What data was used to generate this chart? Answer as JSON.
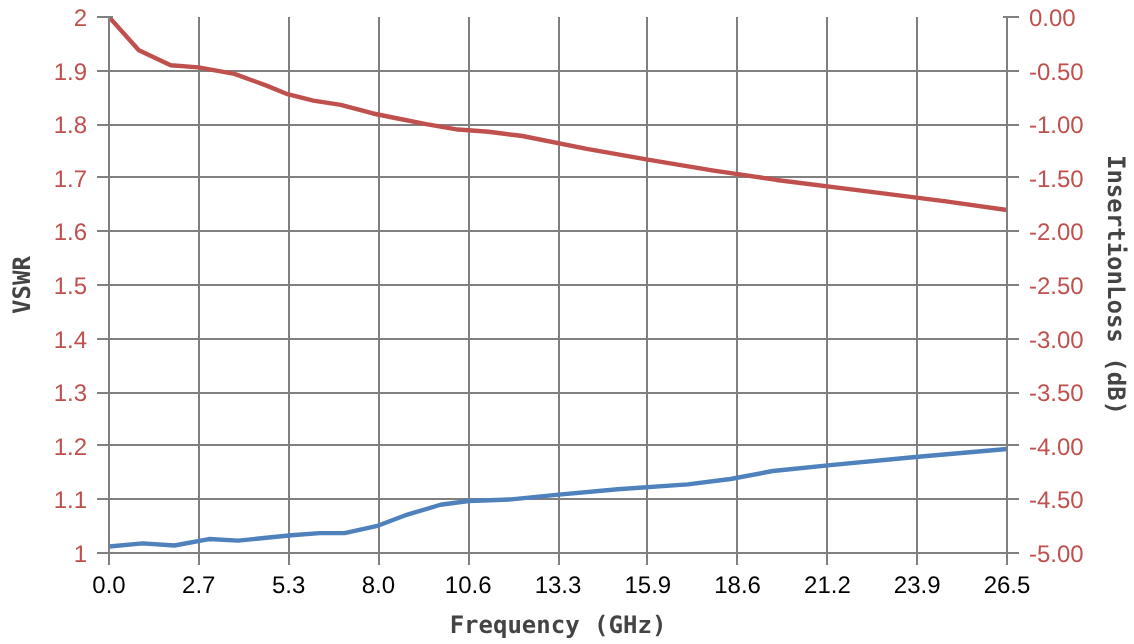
{
  "chart_data": {
    "type": "line",
    "xlabel": "Frequency (GHz)",
    "ylabel": "VSWR",
    "y2label": "InsertionLoss (dB)",
    "xlim": [
      0,
      26.5
    ],
    "xticks": [
      {
        "value": 0,
        "label": "0.0"
      },
      {
        "value": 2.65,
        "label": "2.7"
      },
      {
        "value": 5.3,
        "label": "5.3"
      },
      {
        "value": 7.95,
        "label": "8.0"
      },
      {
        "value": 10.6,
        "label": "10.6"
      },
      {
        "value": 13.25,
        "label": "13.3"
      },
      {
        "value": 15.9,
        "label": "15.9"
      },
      {
        "value": 18.55,
        "label": "18.6"
      },
      {
        "value": 21.2,
        "label": "21.2"
      },
      {
        "value": 23.85,
        "label": "23.9"
      },
      {
        "value": 26.5,
        "label": "26.5"
      }
    ],
    "ylim": [
      1,
      2
    ],
    "yticks": [
      1,
      1.1,
      1.2,
      1.3,
      1.4,
      1.5,
      1.6,
      1.7,
      1.8,
      1.9,
      2
    ],
    "y2lim": [
      -5,
      0
    ],
    "y2ticks": [
      {
        "value": -5,
        "label": "-5.00"
      },
      {
        "value": -4.5,
        "label": "-4.50"
      },
      {
        "value": -4,
        "label": "-4.00"
      },
      {
        "value": -3.5,
        "label": "-3.50"
      },
      {
        "value": -3,
        "label": "-3.00"
      },
      {
        "value": -2.5,
        "label": "-2.50"
      },
      {
        "value": -2,
        "label": "-2.00"
      },
      {
        "value": -1.5,
        "label": "-1.50"
      },
      {
        "value": -1,
        "label": "-1.00"
      },
      {
        "value": -0.5,
        "label": "-0.50"
      },
      {
        "value": 0,
        "label": "0.00"
      }
    ],
    "grid": true,
    "marker": "none",
    "line_style": "solid",
    "series": [
      {
        "color": "#4f81bd",
        "x": [
          0,
          0.99,
          1.93,
          2.95,
          3.81,
          5.38,
          6.22,
          6.95,
          7.89,
          8.73,
          9.78,
          10.61,
          11.87,
          13.12,
          15.01,
          17.08,
          18.34,
          19.59,
          21.29,
          23.8,
          26.5
        ],
        "values": [
          1.012,
          1.018,
          1.014,
          1.026,
          1.023,
          1.033,
          1.037,
          1.037,
          1.05,
          1.07,
          1.09,
          1.097,
          1.1,
          1.108,
          1.119,
          1.128,
          1.138,
          1.153,
          1.164,
          1.179,
          1.194
        ]
      },
      {
        "color": "#c0504d",
        "axis": "y2",
        "x": [
          0,
          0.88,
          1.82,
          2.64,
          3.7,
          4.65,
          5.27,
          6.03,
          6.84,
          7.79,
          8.41,
          9.36,
          10.3,
          11.2,
          12.2,
          14.1,
          15.9,
          17.8,
          19.7,
          22.2,
          24.7,
          26.5
        ],
        "values": [
          0,
          -0.31,
          -0.45,
          -0.47,
          -0.53,
          -0.64,
          -0.72,
          -0.78,
          -0.82,
          -0.9,
          -0.94,
          -1.0,
          -1.05,
          -1.07,
          -1.11,
          -1.23,
          -1.33,
          -1.43,
          -1.52,
          -1.62,
          -1.72,
          -1.8
        ]
      }
    ]
  }
}
